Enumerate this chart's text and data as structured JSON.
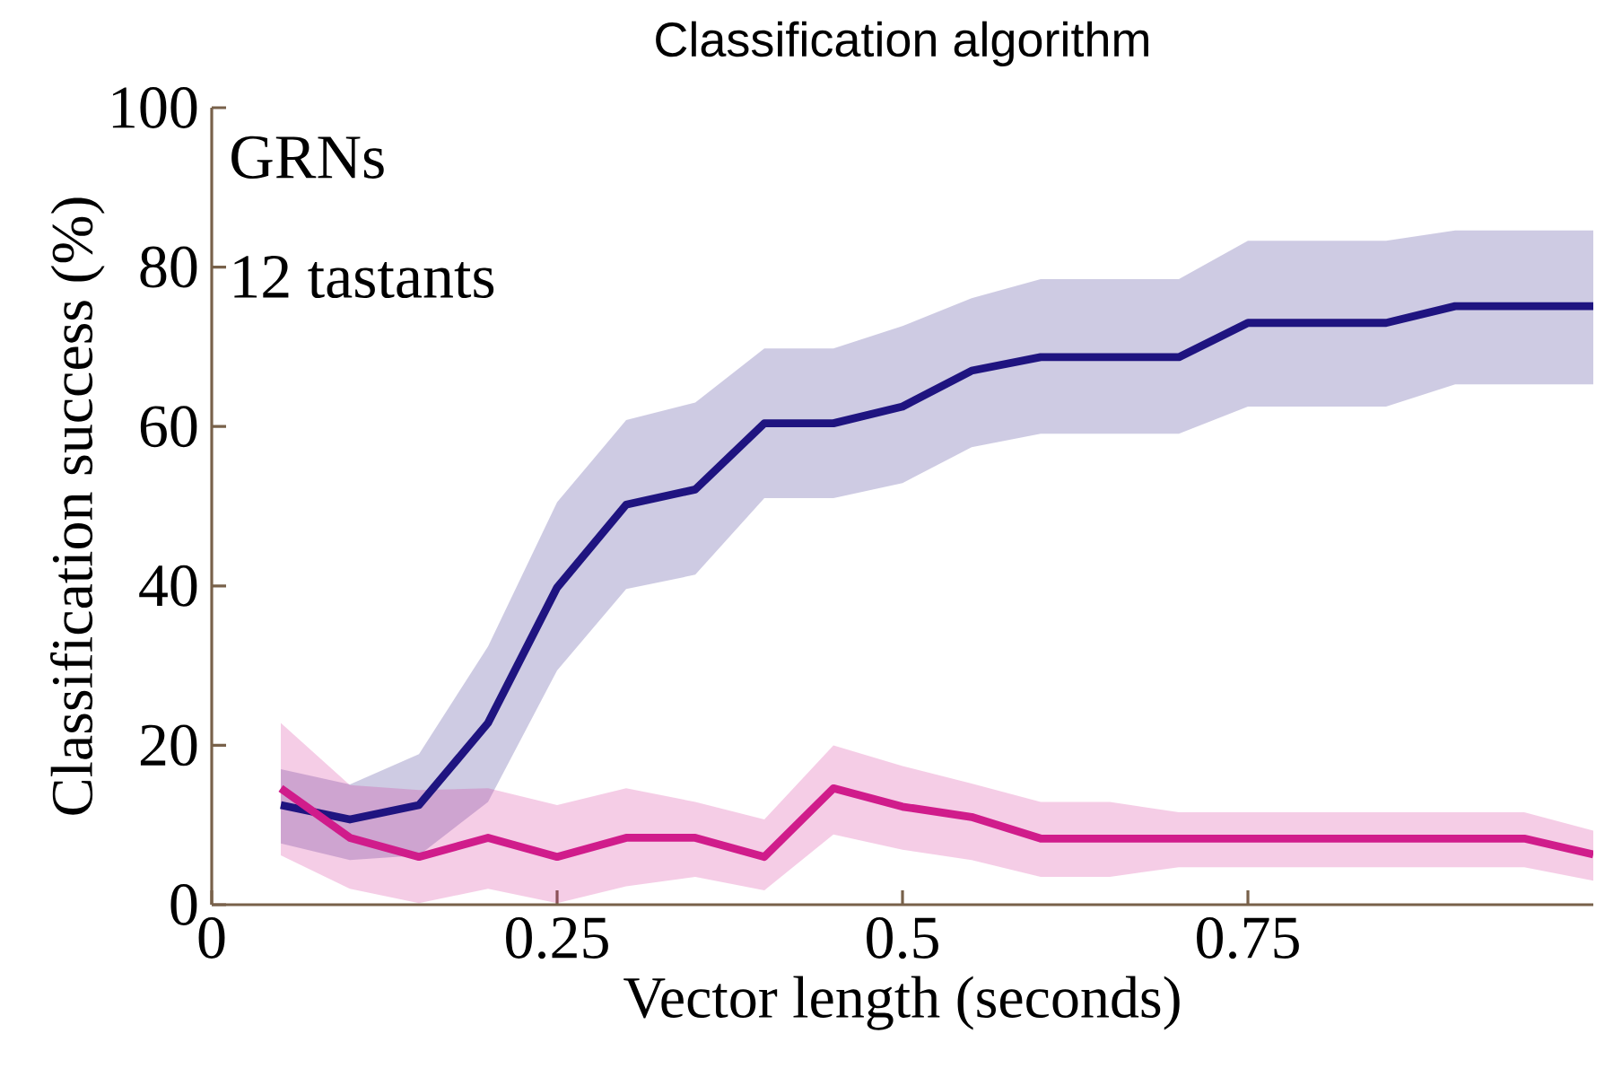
{
  "chart_data": {
    "type": "line",
    "title": "Classification algorithm",
    "xlabel": "Vector length (seconds)",
    "ylabel": "Classification success (%)",
    "annotations": [
      "GRNs",
      "12 tastants"
    ],
    "x": [
      0.05,
      0.1,
      0.15,
      0.2,
      0.25,
      0.3,
      0.35,
      0.4,
      0.45,
      0.5,
      0.55,
      0.6,
      0.65,
      0.7,
      0.75,
      0.8,
      0.85,
      0.9,
      0.95,
      1.0
    ],
    "series": [
      {
        "color": "#1f1480",
        "values": [
          12.5,
          10.7,
          12.5,
          22.8,
          39.8,
          50.2,
          52.1,
          60.4,
          60.4,
          62.5,
          67,
          68.7,
          68.7,
          68.7,
          73,
          73,
          73,
          75.1,
          75.1,
          75.1
        ],
        "upper": [
          17,
          15.1,
          18.9,
          32.4,
          50.5,
          60.8,
          63,
          69.8,
          69.8,
          72.6,
          76.1,
          78.5,
          78.5,
          78.5,
          83.3,
          83.3,
          83.3,
          84.6,
          84.6,
          84.6
        ],
        "lower": [
          7.7,
          5.6,
          6.2,
          12.9,
          29.4,
          39.6,
          41.4,
          51,
          51,
          52.9,
          57.4,
          59.1,
          59.1,
          59.1,
          62.5,
          62.5,
          62.5,
          65.3,
          65.3,
          65.3
        ]
      },
      {
        "color": "#d01c8b",
        "values": [
          14.6,
          8.4,
          6,
          8.4,
          6,
          8.4,
          8.4,
          6,
          14.6,
          12.3,
          11,
          8.3,
          8.3,
          8.3,
          8.3,
          8.3,
          8.3,
          8.3,
          8.3,
          6.3
        ],
        "upper": [
          22.8,
          15,
          14.4,
          14.6,
          12.5,
          14.6,
          12.9,
          10.7,
          20,
          17.4,
          15.2,
          12.9,
          12.9,
          11.6,
          11.6,
          11.6,
          11.6,
          11.6,
          11.6,
          9.3
        ],
        "lower": [
          6.2,
          2,
          0.2,
          2,
          0.2,
          2.3,
          3.5,
          1.8,
          8.8,
          6.9,
          5.6,
          3.5,
          3.5,
          4.7,
          4.7,
          4.7,
          4.7,
          4.7,
          4.7,
          3
        ]
      }
    ],
    "xlim": [
      0,
      1
    ],
    "ylim": [
      0,
      100
    ],
    "xticks": [
      0,
      0.25,
      0.5,
      0.75
    ],
    "yticks": [
      0,
      20,
      40,
      60,
      80,
      100
    ],
    "grid": false,
    "marker": "none",
    "line_style": "solid"
  }
}
